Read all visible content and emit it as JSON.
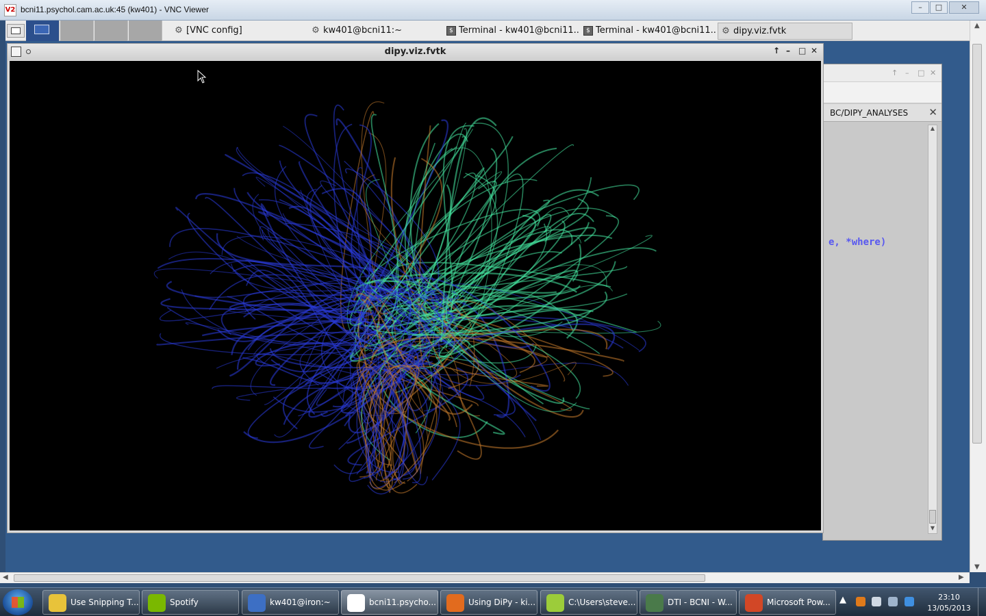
{
  "vnc": {
    "title": "bcni11.psychol.cam.ac.uk:45 (kw401) - VNC Viewer",
    "logo": "V2",
    "buttons": {
      "minimize": "–",
      "maximize": "□",
      "close": "✕"
    }
  },
  "remote_panel": {
    "tasks": [
      {
        "label": "[VNC config]",
        "icon": "gear-icon"
      },
      {
        "label": "kw401@bcni11:~",
        "icon": "gear-icon"
      },
      {
        "label": "Terminal - kw401@bcni11...",
        "icon": "terminal-icon"
      },
      {
        "label": "Terminal - kw401@bcni11...",
        "icon": "terminal-icon"
      },
      {
        "label": "dipy.viz.fvtk",
        "icon": "gear-icon"
      }
    ]
  },
  "editor_window": {
    "tab_label": "BC/DIPY_ANALYSES",
    "code_fragment": "e, *where)"
  },
  "fvtk_window": {
    "title": "dipy.viz.fvtk",
    "buttons": {
      "up": "↑",
      "minimize": "–",
      "maximize": "□",
      "close": "✕"
    }
  },
  "win_taskbar": {
    "items": [
      {
        "label": "Use Snipping T...",
        "color": "#e8c33a"
      },
      {
        "label": "Spotify",
        "color": "#7ab800"
      },
      {
        "label": "kw401@iron:~",
        "color": "#3d6fc4"
      },
      {
        "label": "bcni11.psycho...",
        "color": "#ffffff"
      },
      {
        "label": "Using DiPy - ki...",
        "color": "#e26b1e"
      },
      {
        "label": "C:\\Users\\steve...",
        "color": "#9ccc3a"
      },
      {
        "label": "DTI - BCNI - W...",
        "color": "#4a7a4a"
      },
      {
        "label": "Microsoft Pow...",
        "color": "#d24726"
      }
    ],
    "clock_time": "23:10",
    "clock_date": "13/05/2013"
  },
  "colors": {
    "fiber_blue": "#2a3bd8",
    "fiber_orange": "#c47a2c",
    "fiber_green": "#46e6a0"
  }
}
